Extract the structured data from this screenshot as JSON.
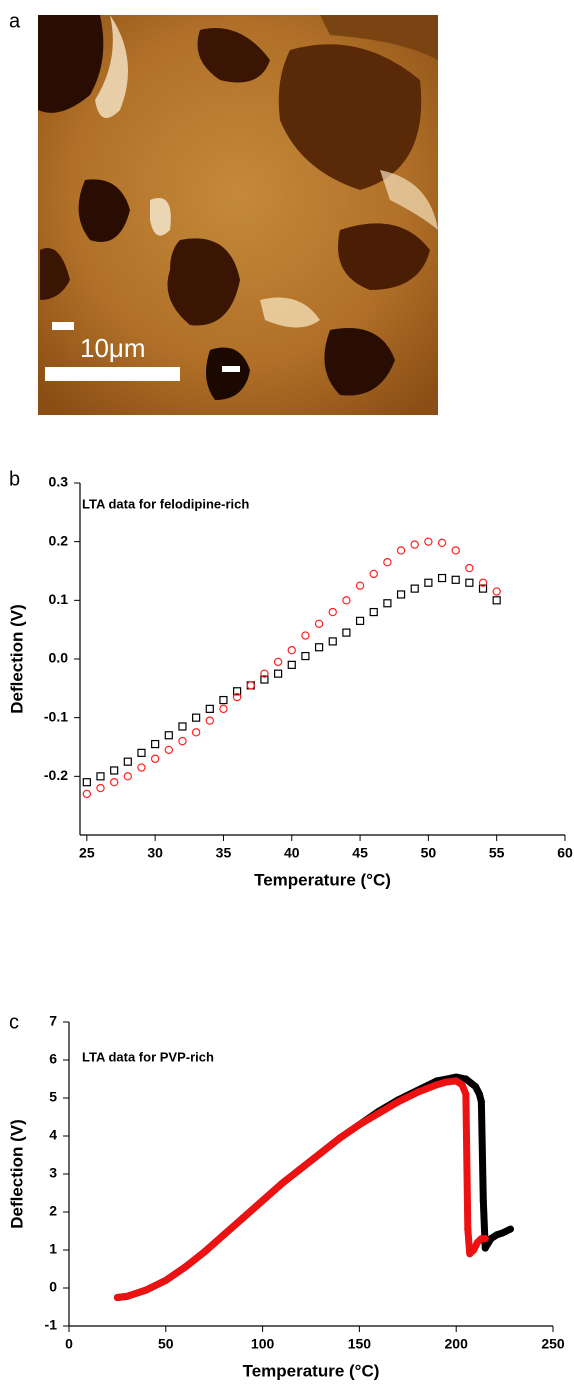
{
  "image": {
    "panel_label": "a",
    "scale_bar": "10μm"
  },
  "chart_data": [
    {
      "type": "scatter",
      "panel_label": "b",
      "title": "LTA data for felodipine-rich",
      "x_label": "Temperature (°C)",
      "y_label": "Deflection (V)",
      "xlim": [
        24.5,
        60
      ],
      "ylim": [
        -0.3,
        0.3
      ],
      "xticks": [
        25,
        30,
        35,
        40,
        45,
        50,
        55,
        60
      ],
      "yticks": [
        -0.2,
        -0.1,
        {
          "value": 0,
          "label": "0.0"
        },
        0.1,
        0.2,
        0.3
      ],
      "series": [
        {
          "color": "#000000",
          "marker": "open-square",
          "x": [
            25,
            26,
            27,
            28,
            29,
            30,
            31,
            32,
            33,
            34,
            35,
            36,
            37,
            38,
            39,
            40,
            41,
            42,
            43,
            44,
            45,
            46,
            47,
            48,
            49,
            50,
            51,
            52,
            53,
            54,
            55
          ],
          "values": [
            -0.21,
            -0.2,
            -0.19,
            -0.175,
            -0.16,
            -0.145,
            -0.13,
            -0.115,
            -0.1,
            -0.085,
            -0.07,
            -0.055,
            -0.045,
            -0.035,
            -0.025,
            -0.01,
            0.005,
            0.02,
            0.03,
            0.045,
            0.065,
            0.08,
            0.095,
            0.11,
            0.12,
            0.13,
            0.138,
            0.135,
            0.13,
            0.12,
            0.1
          ]
        },
        {
          "color": "#ff2020",
          "marker": "open-circle",
          "x": [
            25,
            26,
            27,
            28,
            29,
            30,
            31,
            32,
            33,
            34,
            35,
            36,
            37,
            38,
            39,
            40,
            41,
            42,
            43,
            44,
            45,
            46,
            47,
            48,
            49,
            50,
            51,
            52,
            53,
            54,
            55
          ],
          "values": [
            -0.23,
            -0.22,
            -0.21,
            -0.2,
            -0.185,
            -0.17,
            -0.155,
            -0.14,
            -0.125,
            -0.105,
            -0.085,
            -0.065,
            -0.045,
            -0.025,
            -0.005,
            0.015,
            0.04,
            0.06,
            0.08,
            0.1,
            0.125,
            0.145,
            0.165,
            0.185,
            0.195,
            0.2,
            0.198,
            0.185,
            0.155,
            0.13,
            0.115
          ]
        }
      ]
    },
    {
      "type": "line",
      "panel_label": "c",
      "title": "LTA data for PVP-rich",
      "x_label": "Temperature (°C)",
      "y_label": "Deflection (V)",
      "xlim": [
        0,
        250
      ],
      "ylim": [
        -1,
        7
      ],
      "xticks": [
        0,
        50,
        100,
        150,
        200,
        250
      ],
      "yticks": [
        -1,
        0,
        1,
        2,
        3,
        4,
        5,
        6,
        7
      ],
      "series": [
        {
          "color": "#000000",
          "x": [
            25,
            30,
            40,
            50,
            60,
            70,
            80,
            90,
            100,
            110,
            120,
            130,
            140,
            150,
            160,
            170,
            180,
            190,
            195,
            200,
            205,
            210,
            212,
            213,
            214,
            215,
            218,
            221,
            224,
            228
          ],
          "values": [
            -0.25,
            -0.22,
            -0.05,
            0.2,
            0.55,
            0.95,
            1.4,
            1.85,
            2.3,
            2.75,
            3.15,
            3.55,
            3.95,
            4.3,
            4.65,
            4.95,
            5.2,
            5.45,
            5.5,
            5.55,
            5.5,
            5.3,
            5.1,
            4.9,
            2.3,
            1.05,
            1.3,
            1.4,
            1.45,
            1.55
          ]
        },
        {
          "color": "#ee1111",
          "x": [
            25,
            30,
            40,
            50,
            60,
            70,
            80,
            90,
            100,
            110,
            120,
            130,
            140,
            150,
            160,
            170,
            180,
            190,
            195,
            200,
            203,
            205,
            206,
            207,
            209,
            211,
            213,
            215
          ],
          "values": [
            -0.25,
            -0.22,
            -0.05,
            0.2,
            0.55,
            0.95,
            1.4,
            1.85,
            2.3,
            2.75,
            3.15,
            3.55,
            3.95,
            4.3,
            4.6,
            4.9,
            5.15,
            5.35,
            5.42,
            5.45,
            5.35,
            5.1,
            1.55,
            0.9,
            1.0,
            1.2,
            1.3,
            1.3
          ]
        }
      ]
    }
  ]
}
